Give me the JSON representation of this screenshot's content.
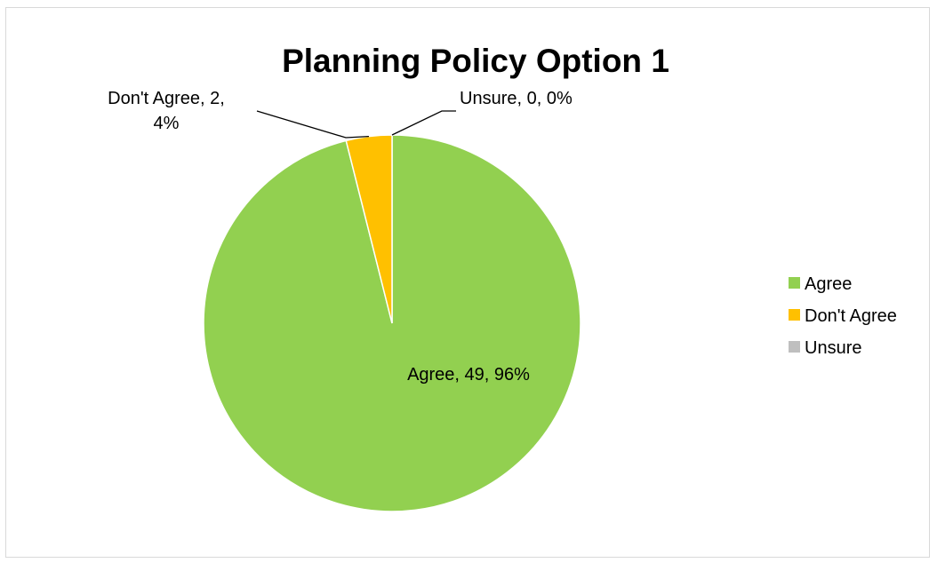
{
  "chart_data": {
    "type": "pie",
    "title": "Planning Policy Option 1",
    "categories": [
      "Agree",
      "Don't Agree",
      "Unsure"
    ],
    "values": [
      49,
      2,
      0
    ],
    "percents": [
      "96%",
      "4%",
      "0%"
    ],
    "colors": [
      "#92d050",
      "#ffc000",
      "#bfbfbf"
    ],
    "start_angle_deg": 0,
    "direction": "clockwise",
    "legend_position": "right",
    "data_labels": [
      {
        "lines": [
          "Agree, 49, 96%"
        ]
      },
      {
        "lines": [
          "Don't Agree, 2,",
          "4%"
        ]
      },
      {
        "lines": [
          "Unsure, 0, 0%"
        ]
      }
    ],
    "legend": [
      {
        "label": "Agree",
        "color": "#92d050"
      },
      {
        "label": "Don't Agree",
        "color": "#ffc000"
      },
      {
        "label": "Unsure",
        "color": "#bfbfbf"
      }
    ]
  }
}
